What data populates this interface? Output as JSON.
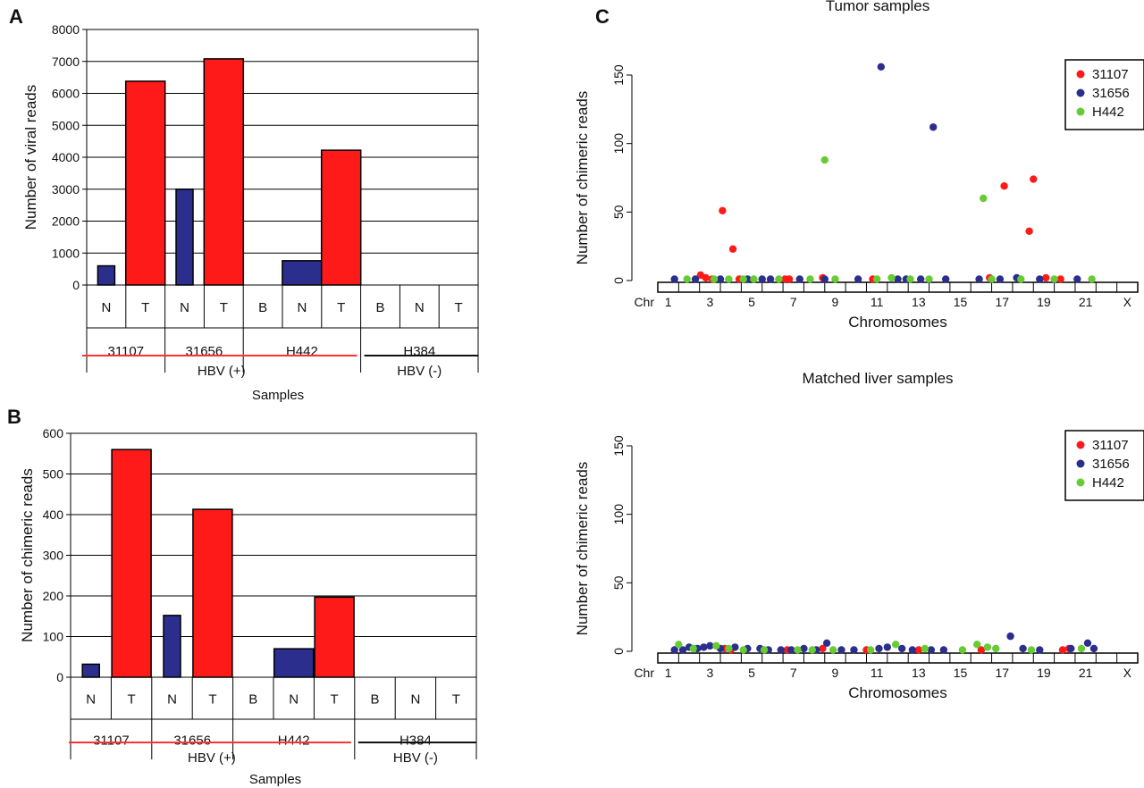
{
  "panels": {
    "a": "A",
    "b": "B",
    "c": "C"
  },
  "colors": {
    "red": "#ff1a1a",
    "blue": "#2b2e8c",
    "green": "#66cc33",
    "hbv_pos_line": "#ff3333",
    "hbv_neg_line": "#111111"
  },
  "bar_common": {
    "sample_labels": [
      "N",
      "T",
      "N",
      "T",
      "B",
      "N",
      "T",
      "B",
      "N",
      "T"
    ],
    "patients": [
      "31107",
      "31656",
      "H442",
      "H384"
    ],
    "groups": [
      "HBV (+)",
      "HBV (-)"
    ],
    "xlabel": "Samples"
  },
  "scatter_common": {
    "xlabel": "Chromosomes",
    "chr_prefix": "Chr",
    "chr_ticks": [
      "1",
      "3",
      "5",
      "7",
      "9",
      "11",
      "13",
      "15",
      "17",
      "19",
      "21",
      "X"
    ],
    "legend": [
      "31107",
      "31656",
      "H442"
    ]
  },
  "chart_data": [
    {
      "type": "bar",
      "panel": "A",
      "categories": [
        "31107 N",
        "31107 T",
        "31656 N",
        "31656 T",
        "H442 B",
        "H442 N",
        "H442 T",
        "H384 B",
        "H384 N",
        "H384 T"
      ],
      "values": [
        600,
        6380,
        3000,
        7080,
        0,
        760,
        4220,
        0,
        0,
        0
      ],
      "bar_colors": [
        "blue",
        "red",
        "blue",
        "red",
        "blue",
        "blue",
        "red",
        "blue",
        "blue",
        "red"
      ],
      "ylabel": "Number of viral reads",
      "xlabel": "Samples",
      "ylim": [
        0,
        8000
      ],
      "yticks": [
        0,
        1000,
        2000,
        3000,
        4000,
        5000,
        6000,
        7000,
        8000
      ],
      "grid": true
    },
    {
      "type": "bar",
      "panel": "B",
      "categories": [
        "31107 N",
        "31107 T",
        "31656 N",
        "31656 T",
        "H442 B",
        "H442 N",
        "H442 T",
        "H384 B",
        "H384 N",
        "H384 T"
      ],
      "values": [
        32,
        560,
        152,
        413,
        0,
        70,
        197,
        0,
        0,
        0
      ],
      "bar_colors": [
        "blue",
        "red",
        "blue",
        "red",
        "blue",
        "blue",
        "red",
        "blue",
        "blue",
        "red"
      ],
      "ylabel": "Number of chimeric reads",
      "xlabel": "Samples",
      "ylim": [
        0,
        600
      ],
      "yticks": [
        0,
        100,
        200,
        300,
        400,
        500,
        600
      ],
      "grid": true
    },
    {
      "type": "scatter",
      "panel": "C",
      "title": "Tumor samples",
      "ylabel": "Number of chimeric reads",
      "xlabel": "Chromosomes",
      "ylim": [
        0,
        150
      ],
      "yticks": [
        0,
        50,
        100,
        150
      ],
      "legend_position": "top-right",
      "series": [
        {
          "name": "31107",
          "color": "red",
          "points": [
            [
              3.1,
              51
            ],
            [
              3.6,
              23
            ],
            [
              2.05,
              4
            ],
            [
              2.3,
              2
            ],
            [
              2.6,
              1
            ],
            [
              3.9,
              1
            ],
            [
              6.1,
              1
            ],
            [
              6.3,
              1
            ],
            [
              7.9,
              2
            ],
            [
              10.3,
              1
            ],
            [
              15.9,
              2
            ],
            [
              16.6,
              69
            ],
            [
              17.8,
              36
            ],
            [
              18.0,
              74
            ],
            [
              18.6,
              2
            ],
            [
              19.3,
              1
            ]
          ]
        },
        {
          "name": "31656",
          "color": "blue",
          "points": [
            [
              0.8,
              1
            ],
            [
              1.8,
              1
            ],
            [
              3.0,
              1
            ],
            [
              4.3,
              1
            ],
            [
              5.0,
              1
            ],
            [
              5.4,
              1
            ],
            [
              6.8,
              1
            ],
            [
              8.0,
              1
            ],
            [
              9.6,
              1
            ],
            [
              10.7,
              156
            ],
            [
              11.5,
              1
            ],
            [
              11.9,
              1
            ],
            [
              12.6,
              1
            ],
            [
              13.2,
              112
            ],
            [
              13.8,
              1
            ],
            [
              15.4,
              1
            ],
            [
              16.4,
              1
            ],
            [
              17.2,
              2
            ],
            [
              18.3,
              1
            ],
            [
              20.1,
              1
            ]
          ]
        },
        {
          "name": "H442",
          "color": "green",
          "points": [
            [
              1.4,
              1
            ],
            [
              2.7,
              1
            ],
            [
              3.4,
              1
            ],
            [
              4.1,
              1
            ],
            [
              4.6,
              1
            ],
            [
              5.8,
              1
            ],
            [
              7.3,
              1
            ],
            [
              8.0,
              88
            ],
            [
              8.5,
              1
            ],
            [
              10.5,
              1
            ],
            [
              11.2,
              2
            ],
            [
              12.1,
              1
            ],
            [
              13.0,
              1
            ],
            [
              15.6,
              60
            ],
            [
              16.0,
              1
            ],
            [
              17.4,
              1
            ],
            [
              19.0,
              1
            ],
            [
              20.8,
              1
            ]
          ]
        }
      ]
    },
    {
      "type": "scatter",
      "panel": "C",
      "title": "Matched liver samples",
      "ylabel": "Number of chimeric reads",
      "xlabel": "Chromosomes",
      "ylim": [
        0,
        150
      ],
      "yticks": [
        0,
        50,
        100,
        150
      ],
      "legend_position": "top-right",
      "series": [
        {
          "name": "31107",
          "color": "red",
          "points": [
            [
              3.2,
              2
            ],
            [
              3.5,
              1
            ],
            [
              6.2,
              1
            ],
            [
              7.9,
              2
            ],
            [
              10.0,
              1
            ],
            [
              12.5,
              1
            ],
            [
              15.5,
              1
            ],
            [
              19.4,
              1
            ],
            [
              19.7,
              2
            ]
          ]
        },
        {
          "name": "31656",
          "color": "blue",
          "points": [
            [
              0.8,
              1
            ],
            [
              1.2,
              1
            ],
            [
              1.5,
              3
            ],
            [
              1.9,
              2
            ],
            [
              2.2,
              3
            ],
            [
              2.5,
              4
            ],
            [
              3.0,
              2
            ],
            [
              3.7,
              3
            ],
            [
              4.3,
              2
            ],
            [
              4.9,
              2
            ],
            [
              5.3,
              1
            ],
            [
              5.9,
              1
            ],
            [
              6.4,
              1
            ],
            [
              7.0,
              2
            ],
            [
              7.6,
              1
            ],
            [
              8.1,
              6
            ],
            [
              8.8,
              1
            ],
            [
              9.4,
              1
            ],
            [
              10.6,
              2
            ],
            [
              11.0,
              3
            ],
            [
              11.7,
              2
            ],
            [
              12.2,
              1
            ],
            [
              13.1,
              1
            ],
            [
              13.7,
              1
            ],
            [
              16.9,
              11
            ],
            [
              17.5,
              2
            ],
            [
              18.3,
              1
            ],
            [
              19.8,
              2
            ],
            [
              20.6,
              6
            ],
            [
              20.9,
              2
            ]
          ]
        },
        {
          "name": "H442",
          "color": "green",
          "points": [
            [
              1.0,
              5
            ],
            [
              1.7,
              2
            ],
            [
              2.8,
              4
            ],
            [
              3.4,
              2
            ],
            [
              4.1,
              1
            ],
            [
              5.1,
              1
            ],
            [
              6.7,
              1
            ],
            [
              7.4,
              1
            ],
            [
              8.4,
              1
            ],
            [
              10.2,
              1
            ],
            [
              11.4,
              5
            ],
            [
              12.8,
              2
            ],
            [
              14.6,
              1
            ],
            [
              15.3,
              5
            ],
            [
              15.8,
              3
            ],
            [
              16.2,
              2
            ],
            [
              17.9,
              1
            ],
            [
              20.3,
              2
            ]
          ]
        }
      ]
    }
  ]
}
